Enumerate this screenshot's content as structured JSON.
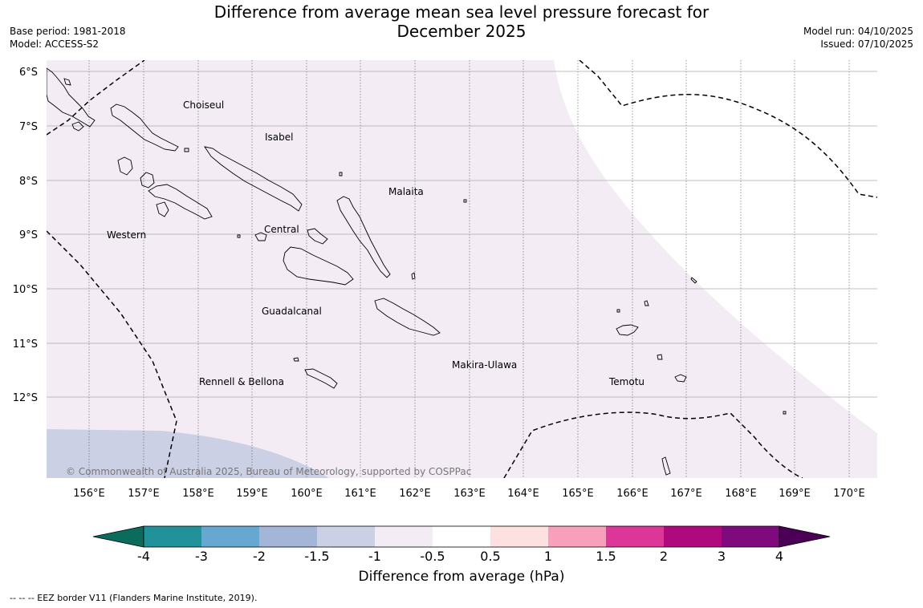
{
  "title": {
    "line1": "Difference from average mean sea level pressure forecast for",
    "line2": "December 2025"
  },
  "meta": {
    "base_period": "Base period: 1981-2018",
    "model": "Model: ACCESS-S2",
    "model_run": "Model run: 04/10/2025",
    "issued": "Issued: 07/10/2025"
  },
  "map": {
    "lat_labels": [
      "6°S",
      "7°S",
      "8°S",
      "9°S",
      "10°S",
      "11°S",
      "12°S"
    ],
    "lon_labels": [
      "156°E",
      "157°E",
      "158°E",
      "159°E",
      "160°E",
      "161°E",
      "162°E",
      "163°E",
      "164°E",
      "165°E",
      "166°E",
      "167°E",
      "168°E",
      "169°E",
      "170°E"
    ],
    "regions": {
      "choiseul": "Choiseul",
      "isabel": "Isabel",
      "malaita": "Malaita",
      "central": "Central",
      "western": "Western",
      "guadalcanal": "Guadalcanal",
      "makira": "Makira-Ulawa",
      "rennell": "Rennell & Bellona",
      "temotu": "Temotu"
    },
    "copyright": "© Commonwealth of Australia 2025, Bureau of Meteorology, supported by COSPPac"
  },
  "colorbar": {
    "title": "Difference from average (hPa)",
    "tick_labels": [
      "-4",
      "-3",
      "-2",
      "-1.5",
      "-1",
      "-0.5",
      "0.5",
      "1",
      "1.5",
      "2",
      "3",
      "4"
    ],
    "colors": {
      "below": "#0b6b5d",
      "c1": "#21929a",
      "c2": "#66a8d2",
      "c3": "#a4b6d8",
      "c4": "#ccd0e4",
      "c5": "#f3ecf5",
      "c6": "#ffffff",
      "c7": "#fde0e0",
      "c8": "#f8a0bb",
      "c9": "#dd3699",
      "c10": "#b0087d",
      "c11": "#7e0a7e",
      "above": "#4b0055"
    }
  },
  "footer": "--  --  -- EEZ border V11 (Flanders Marine Institute, 2019)."
}
